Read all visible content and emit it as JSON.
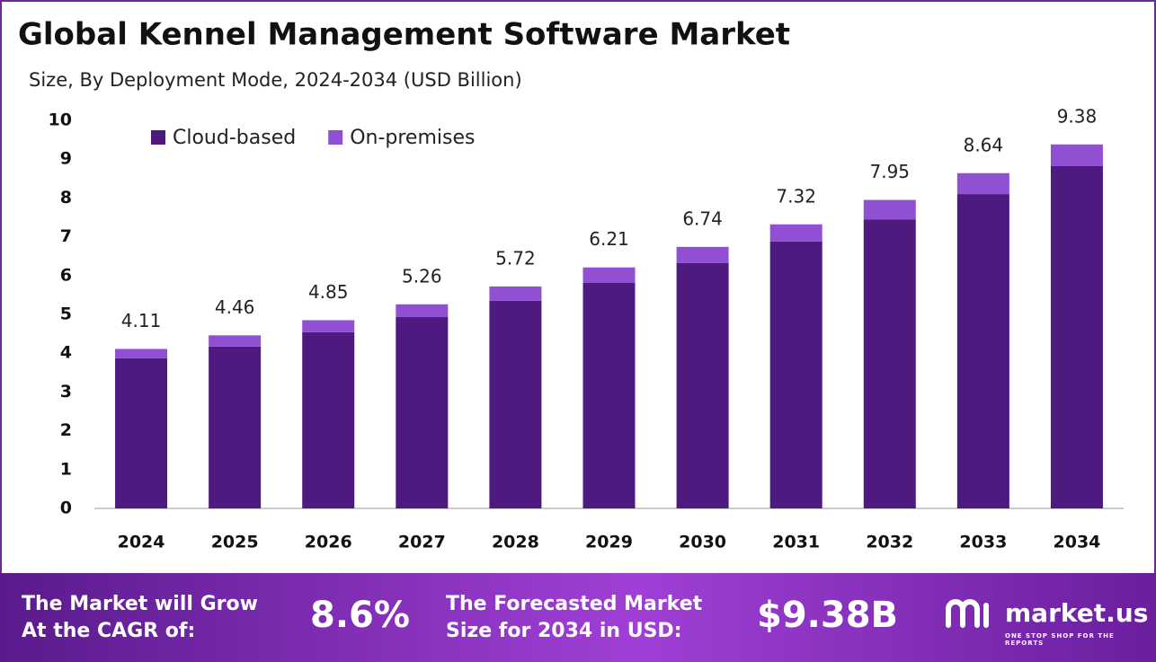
{
  "chart_data": {
    "type": "stacked-bar",
    "title": "Global Kennel Management Software Market",
    "subtitle": "Size, By Deployment Mode, 2024-2034 (USD Billion)",
    "categories": [
      "2024",
      "2025",
      "2026",
      "2027",
      "2028",
      "2029",
      "2030",
      "2031",
      "2032",
      "2033",
      "2034"
    ],
    "series": [
      {
        "name": "Cloud-based",
        "color": "#4f1a80",
        "values": [
          3.87,
          4.17,
          4.54,
          4.93,
          5.35,
          5.81,
          6.32,
          6.88,
          7.45,
          8.1,
          8.82
        ]
      },
      {
        "name": "On-premises",
        "color": "#9150d4",
        "values": [
          0.24,
          0.29,
          0.31,
          0.33,
          0.37,
          0.4,
          0.42,
          0.44,
          0.5,
          0.54,
          0.56
        ]
      }
    ],
    "totals": [
      4.11,
      4.46,
      4.85,
      5.26,
      5.72,
      6.21,
      6.74,
      7.32,
      7.95,
      8.64,
      9.38
    ],
    "ylim": [
      0,
      10
    ],
    "yticks": [
      0,
      1,
      2,
      3,
      4,
      5,
      6,
      7,
      8,
      9,
      10
    ],
    "grid": false,
    "legend": "top-left"
  },
  "footer": {
    "cagr_label_1": "The Market will Grow",
    "cagr_label_2": "At the CAGR of:",
    "cagr_value": "8.6%",
    "forecast_label_1": "The Forecasted Market",
    "forecast_label_2": "Size for 2034 in USD:",
    "forecast_value": "$9.38B",
    "brand": "market.us",
    "tagline": "ONE STOP SHOP FOR THE REPORTS"
  }
}
